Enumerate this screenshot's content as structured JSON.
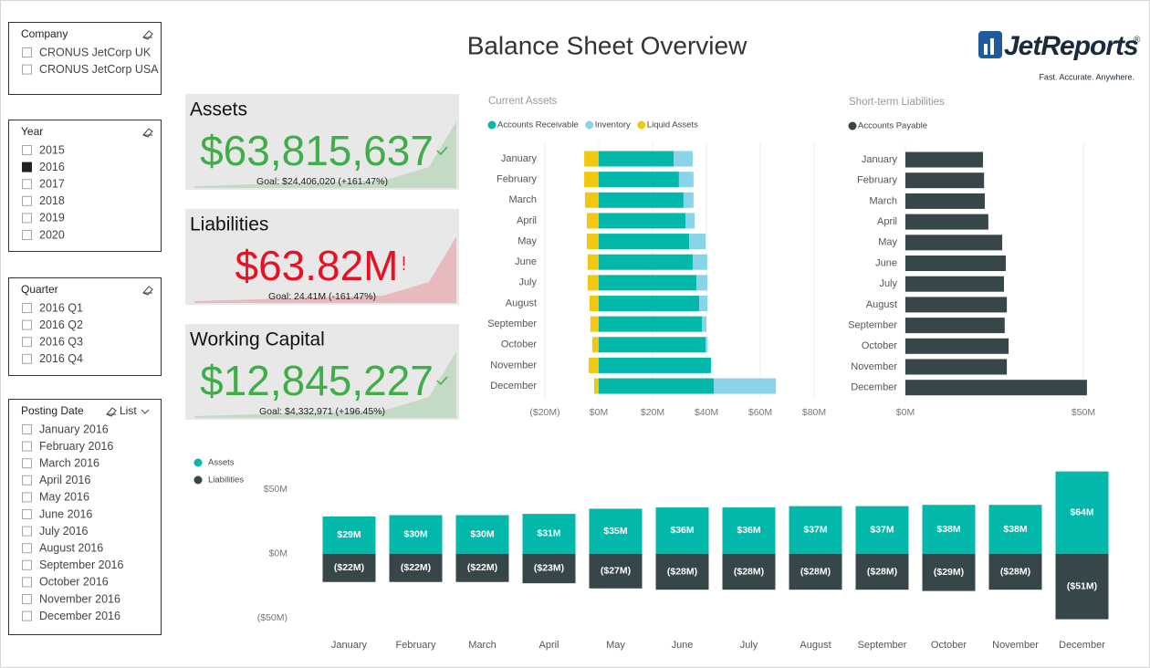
{
  "report_title": "Balance Sheet Overview",
  "logo": {
    "name": "JetReports",
    "mark": "®",
    "tagline": "Fast. Accurate. Anywhere."
  },
  "slicers": [
    {
      "title": "Company",
      "items": [
        {
          "label": "CRONUS JetCorp UK"
        },
        {
          "label": "CRONUS JetCorp USA"
        }
      ]
    },
    {
      "title": "Year",
      "items": [
        {
          "label": "2015"
        },
        {
          "label": "2016",
          "checked": true
        },
        {
          "label": "2017"
        },
        {
          "label": "2018"
        },
        {
          "label": "2019"
        },
        {
          "label": "2020"
        }
      ]
    },
    {
      "title": "Quarter",
      "items": [
        {
          "label": "2016 Q1"
        },
        {
          "label": "2016 Q2"
        },
        {
          "label": "2016 Q3"
        },
        {
          "label": "2016 Q4"
        }
      ]
    },
    {
      "title": "Posting Date",
      "mode": "List",
      "items": [
        {
          "label": "January 2016"
        },
        {
          "label": "February 2016"
        },
        {
          "label": "March 2016"
        },
        {
          "label": "April 2016"
        },
        {
          "label": "May 2016"
        },
        {
          "label": "June 2016"
        },
        {
          "label": "July 2016"
        },
        {
          "label": "August 2016"
        },
        {
          "label": "September 2016"
        },
        {
          "label": "October 2016"
        },
        {
          "label": "November 2016"
        },
        {
          "label": "December 2016"
        }
      ]
    }
  ],
  "kpis": [
    {
      "title": "Assets",
      "value": "$63,815,637",
      "goal": "Goal: $24,406,020 (+161.47%)",
      "status": "good",
      "color": "#3fae49"
    },
    {
      "title": "Liabilities",
      "value": "$63.82M",
      "goal": "Goal: 24.41M (-161.47%)",
      "status": "bad",
      "color": "#e81123"
    },
    {
      "title": "Working Capital",
      "value": "$12,845,227",
      "goal": "Goal: $4,332,971 (+196.45%)",
      "status": "good",
      "color": "#3fae49"
    }
  ],
  "chart_data": [
    {
      "type": "bar",
      "orientation": "horizontal",
      "stacked": true,
      "title": "Current Assets",
      "categories": [
        "January",
        "February",
        "March",
        "April",
        "May",
        "June",
        "July",
        "August",
        "September",
        "October",
        "November",
        "December"
      ],
      "series": [
        {
          "name": "Accounts Receivable",
          "color": "#01b8aa",
          "values": [
            27.8,
            29.8,
            31.5,
            32.2,
            33.6,
            34.9,
            36.3,
            37.3,
            38.3,
            39.7,
            41.7,
            42.7
          ]
        },
        {
          "name": "Inventory",
          "color": "#8ad4eb",
          "values": [
            7.1,
            5.4,
            3.7,
            3.4,
            6.1,
            5.4,
            4.1,
            3.1,
            1.7,
            0.7,
            0,
            23.1
          ]
        },
        {
          "name": "Liquid Assets",
          "color": "#f2c80f",
          "values": [
            -5.4,
            -5.4,
            -5.1,
            -4.4,
            -4.4,
            -4.1,
            -4.1,
            -3.4,
            -3.1,
            -2.4,
            -3.7,
            -1.7
          ]
        }
      ],
      "xlim": [
        -20,
        80
      ],
      "xticks": [
        {
          "value": -20,
          "label": "($20M)"
        },
        {
          "value": 0,
          "label": "$0M"
        },
        {
          "value": 20,
          "label": "$20M"
        },
        {
          "value": 40,
          "label": "$40M"
        },
        {
          "value": 60,
          "label": "$60M"
        },
        {
          "value": 80,
          "label": "$80M"
        }
      ],
      "grid": true
    },
    {
      "type": "bar",
      "orientation": "horizontal",
      "title": "Short-term Liabilities",
      "categories": [
        "January",
        "February",
        "March",
        "April",
        "May",
        "June",
        "July",
        "August",
        "September",
        "October",
        "November",
        "December"
      ],
      "series": [
        {
          "name": "Accounts Payable",
          "color": "#374649",
          "values": [
            21.8,
            22.1,
            22.3,
            23.3,
            27.2,
            28.2,
            27.7,
            28.5,
            27.9,
            29.0,
            28.5,
            51.0
          ]
        }
      ],
      "xlim": [
        0,
        57
      ],
      "xticks": [
        {
          "value": 0,
          "label": "$0M"
        },
        {
          "value": 50,
          "label": "$50M"
        }
      ],
      "grid": true
    },
    {
      "type": "bar",
      "orientation": "vertical",
      "categories": [
        "January",
        "February",
        "March",
        "April",
        "May",
        "June",
        "July",
        "August",
        "September",
        "October",
        "November",
        "December"
      ],
      "series": [
        {
          "name": "Assets",
          "color": "#01b8aa",
          "values": [
            29,
            30,
            30,
            31,
            35,
            36,
            36,
            37,
            37,
            38,
            38,
            64
          ],
          "value_labels": [
            "$29M",
            "$30M",
            "$30M",
            "$31M",
            "$35M",
            "$36M",
            "$36M",
            "$37M",
            "$37M",
            "$38M",
            "$38M",
            "$64M"
          ]
        },
        {
          "name": "Liabilities",
          "color": "#374649",
          "values": [
            -22,
            -22,
            -22,
            -23,
            -27,
            -28,
            -28,
            -28,
            -28,
            -29,
            -28,
            -51
          ],
          "value_labels": [
            "($22M)",
            "($22M)",
            "($22M)",
            "($23M)",
            "($27M)",
            "($28M)",
            "($28M)",
            "($28M)",
            "($28M)",
            "($29M)",
            "($28M)",
            "($51M)"
          ]
        }
      ],
      "ylim": [
        -52,
        68
      ],
      "yticks": [
        {
          "value": 50,
          "label": "$50M"
        },
        {
          "value": 0,
          "label": "$0M"
        },
        {
          "value": -50,
          "label": "($50M)"
        }
      ],
      "legend": "top-left"
    }
  ]
}
